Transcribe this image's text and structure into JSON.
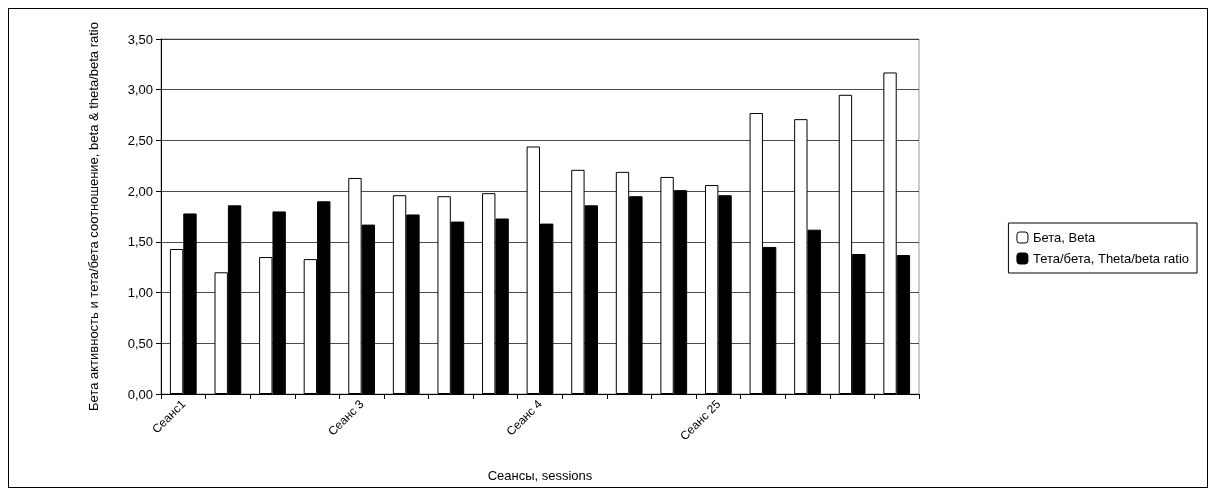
{
  "chart_data": {
    "type": "bar",
    "xlabel": "Сеансы, sessions",
    "ylabel": "Бета активность и тета/бета соотношение, beta & theta/beta ratio",
    "categories": [
      "Сеанс1",
      null,
      null,
      null,
      "Сеанс 3",
      null,
      null,
      null,
      "Сеанс 4",
      null,
      null,
      null,
      "Сеанс 25",
      null,
      null,
      null,
      null
    ],
    "series": [
      {
        "name": "Бета, Beta",
        "color": "#ffffff",
        "values": [
          1.43,
          1.2,
          1.35,
          1.33,
          2.13,
          1.96,
          1.95,
          1.98,
          2.44,
          2.21,
          2.19,
          2.14,
          2.06,
          2.77,
          2.71,
          2.95,
          3.17
        ]
      },
      {
        "name": "Тета/бета, Theta/beta ratio",
        "color": "#000000",
        "values": [
          1.78,
          1.86,
          1.8,
          1.9,
          1.67,
          1.77,
          1.7,
          1.73,
          1.68,
          1.86,
          1.95,
          2.01,
          1.96,
          1.45,
          1.62,
          1.38,
          1.37
        ]
      }
    ],
    "ylim": [
      0,
      3.5
    ],
    "yticks": [
      {
        "value": 0,
        "label": "0,00"
      },
      {
        "value": 0.5,
        "label": "0,50"
      },
      {
        "value": 1,
        "label": "1,00"
      },
      {
        "value": 1.5,
        "label": "1,50"
      },
      {
        "value": 2,
        "label": "2,00"
      },
      {
        "value": 2.5,
        "label": "2,50"
      },
      {
        "value": 3,
        "label": "3,00"
      },
      {
        "value": 3.5,
        "label": "3,50"
      }
    ],
    "grid": "y",
    "legend": "right"
  }
}
